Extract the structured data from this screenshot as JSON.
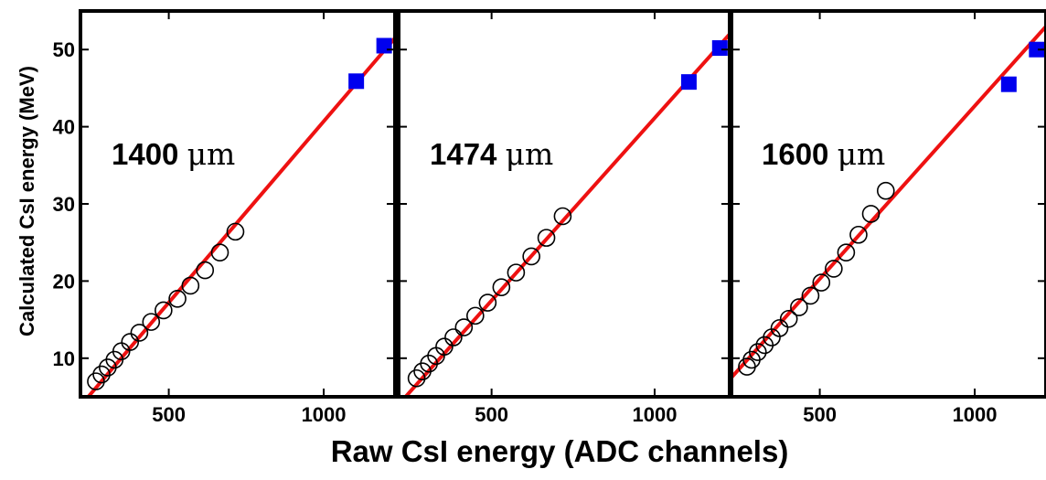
{
  "colors": {
    "fit_line": "#ee1111",
    "square_marker": "#0000ee",
    "circle_marker": "#000000",
    "axes": "#000000"
  },
  "chart_data": {
    "type": "scatter",
    "xlabel": "Raw CsI energy (ADC channels)",
    "ylabel": "Calculated CsI energy (MeV)",
    "xlim": [
      215,
      1230
    ],
    "ylim": [
      5,
      55
    ],
    "xticks": [
      500,
      1000
    ],
    "yticks": [
      10,
      20,
      30,
      40,
      50
    ],
    "grid": false,
    "panels": [
      {
        "label": "1400",
        "unit": "μm",
        "circles": [
          [
            265,
            7.0
          ],
          [
            283,
            7.9
          ],
          [
            303,
            8.8
          ],
          [
            325,
            9.8
          ],
          [
            347,
            10.9
          ],
          [
            375,
            12.1
          ],
          [
            405,
            13.3
          ],
          [
            443,
            14.7
          ],
          [
            483,
            16.2
          ],
          [
            528,
            17.7
          ],
          [
            570,
            19.4
          ],
          [
            617,
            21.4
          ],
          [
            665,
            23.7
          ],
          [
            715,
            26.4
          ]
        ],
        "squares": [
          [
            1105,
            45.9
          ],
          [
            1195,
            50.5
          ]
        ],
        "fit": [
          [
            240,
            5.0
          ],
          [
            1230,
            51.5
          ]
        ]
      },
      {
        "label": "1474",
        "unit": "μm",
        "circles": [
          [
            270,
            7.4
          ],
          [
            288,
            8.3
          ],
          [
            308,
            9.3
          ],
          [
            330,
            10.3
          ],
          [
            355,
            11.5
          ],
          [
            383,
            12.7
          ],
          [
            415,
            14.0
          ],
          [
            450,
            15.5
          ],
          [
            488,
            17.2
          ],
          [
            530,
            19.2
          ],
          [
            575,
            21.1
          ],
          [
            622,
            23.2
          ],
          [
            668,
            25.6
          ],
          [
            718,
            28.4
          ]
        ],
        "squares": [
          [
            1105,
            45.8
          ],
          [
            1200,
            50.2
          ]
        ],
        "fit": [
          [
            215,
            4.0
          ],
          [
            1230,
            52.0
          ]
        ]
      },
      {
        "label": "1600",
        "unit": "μm",
        "circles": [
          [
            265,
            8.9
          ],
          [
            280,
            9.8
          ],
          [
            300,
            10.8
          ],
          [
            322,
            11.7
          ],
          [
            345,
            12.7
          ],
          [
            370,
            13.9
          ],
          [
            400,
            15.1
          ],
          [
            433,
            16.6
          ],
          [
            470,
            18.1
          ],
          [
            505,
            19.8
          ],
          [
            545,
            21.6
          ],
          [
            585,
            23.7
          ],
          [
            625,
            26.0
          ],
          [
            665,
            28.7
          ],
          [
            713,
            31.7
          ]
        ],
        "squares": [
          [
            1110,
            45.5
          ],
          [
            1200,
            50.0
          ]
        ],
        "fit": [
          [
            215,
            7.5
          ],
          [
            1230,
            53.0
          ]
        ]
      }
    ]
  }
}
